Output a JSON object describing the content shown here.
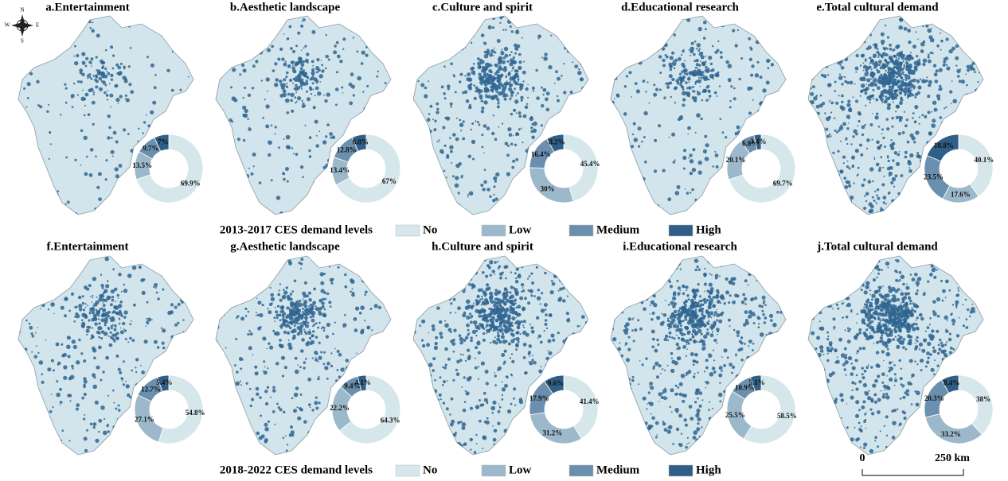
{
  "compass": {
    "n": "N",
    "s": "S",
    "w": "W",
    "e": "E"
  },
  "chart_data": [
    {
      "type": "donut",
      "title": "a.Entertainment",
      "values": [
        69.9,
        13.5,
        9.7,
        7
      ],
      "value_labels": [
        "69.9%",
        "13.5%",
        "9.7%",
        "7%"
      ]
    },
    {
      "type": "donut",
      "title": "b.Aesthetic landscape",
      "values": [
        67,
        13.4,
        12.8,
        6.8
      ],
      "value_labels": [
        "67%",
        "13.4%",
        "12.8%",
        "6.8%"
      ]
    },
    {
      "type": "donut",
      "title": "c.Culture and spirit",
      "values": [
        45.4,
        30,
        16.4,
        8.2
      ],
      "value_labels": [
        "45.4%",
        "30%",
        "16.4%",
        "8.2%"
      ]
    },
    {
      "type": "donut",
      "title": "d.Educational research",
      "values": [
        69.7,
        20.1,
        6.8,
        3.4
      ],
      "value_labels": [
        "69.7%",
        "20.1%",
        "6.8%",
        "3.4%"
      ]
    },
    {
      "type": "donut",
      "title": "e.Total cultural demand",
      "values": [
        40.1,
        17.6,
        23.5,
        18.8
      ],
      "value_labels": [
        "40.1%",
        "17.6%",
        "23.5%",
        "18.8%"
      ]
    },
    {
      "type": "donut",
      "title": "f.Entertainment",
      "values": [
        54.8,
        27.1,
        12.7,
        5.4
      ],
      "value_labels": [
        "54.8%",
        "27.1%",
        "12.7%",
        "5.4%"
      ]
    },
    {
      "type": "donut",
      "title": "g.Aesthetic landscape",
      "values": [
        64.3,
        22.2,
        9.4,
        4.1
      ],
      "value_labels": [
        "64.3%",
        "22.2%",
        "9.4%",
        "4.1%"
      ]
    },
    {
      "type": "donut",
      "title": "h.Culture and spirit",
      "values": [
        41.4,
        31.2,
        17.9,
        9.6
      ],
      "value_labels": [
        "41.4%",
        "31.2%",
        "17.9%",
        "9.6%"
      ]
    },
    {
      "type": "donut",
      "title": "i.Educational research",
      "values": [
        58.5,
        25.5,
        10.9,
        5.1
      ],
      "value_labels": [
        "58.5%",
        "25.5%",
        "10.9%",
        "5.1%"
      ]
    },
    {
      "type": "donut",
      "title": "j.Total cultural demand",
      "values": [
        38,
        33.2,
        20.3,
        8.4
      ],
      "value_labels": [
        "38%",
        "33.2%",
        "20.3%",
        "8.4%"
      ]
    }
  ],
  "legends": [
    {
      "title": "2013-2017 CES demand levels",
      "items": [
        "No",
        "Low",
        "Medium",
        "High"
      ]
    },
    {
      "title": "2018-2022 CES demand levels",
      "items": [
        "No",
        "Low",
        "Medium",
        "High"
      ]
    }
  ],
  "colors": [
    "#d6e7ec",
    "#9cb8cb",
    "#6b8fae",
    "#2f5f86"
  ],
  "scale_bar": {
    "start": "0",
    "end": "250 km"
  }
}
